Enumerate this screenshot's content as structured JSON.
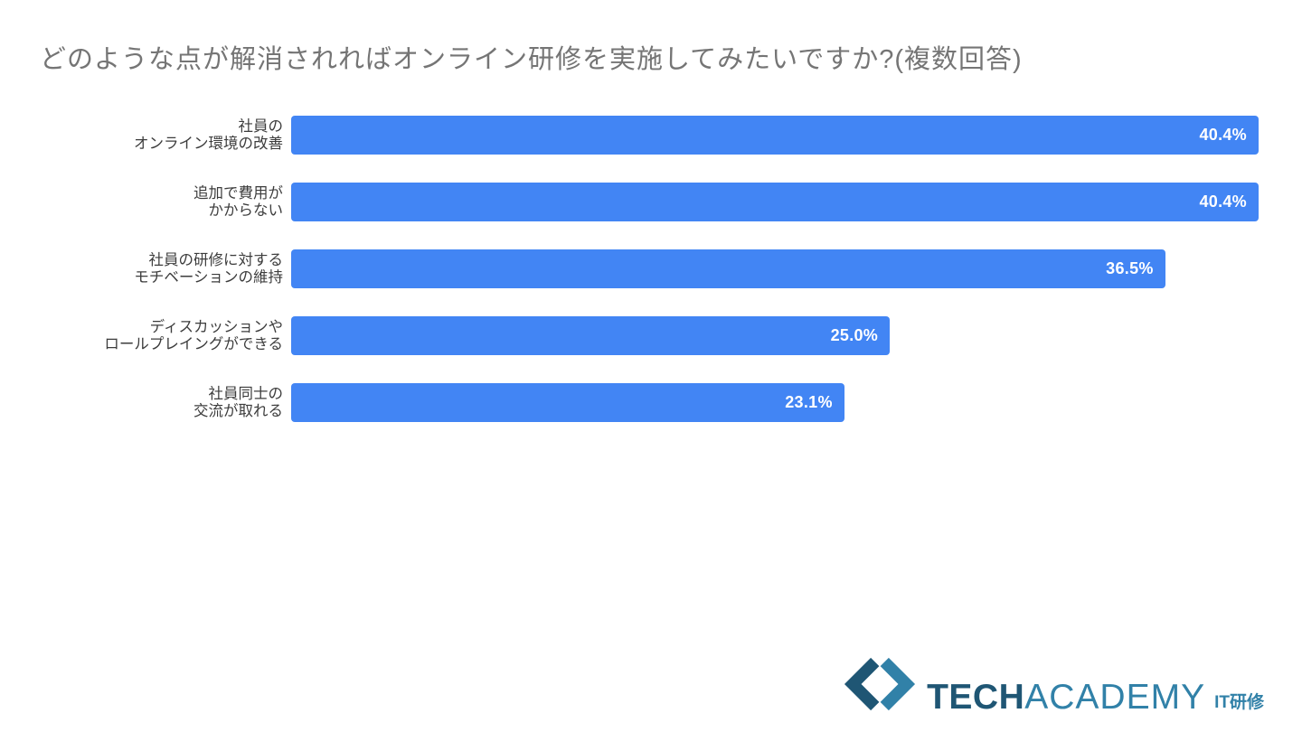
{
  "title": "どのような点が解消されればオンライン研修を実施してみたいですか?(複数回答)",
  "chart_data": {
    "type": "bar",
    "orientation": "horizontal",
    "title": "どのような点が解消されればオンライン研修を実施してみたいですか?(複数回答)",
    "categories": [
      "社員の\nオンライン環境の改善",
      "追加で費用が\nかからない",
      "社員の研修に対する\nモチベーションの維持",
      "ディスカッションや\nロールプレイングができる",
      "社員同士の\n交流が取れる"
    ],
    "values": [
      40.4,
      40.4,
      36.5,
      25.0,
      23.1
    ],
    "value_labels": [
      "40.4%",
      "40.4%",
      "36.5%",
      "25.0%",
      "23.1%"
    ],
    "xlabel": "",
    "ylabel": "",
    "xlim": [
      0,
      40.4
    ],
    "grid": false,
    "legend": false,
    "value_label_position": "inside-end",
    "bar_label_side": "left"
  },
  "colors": {
    "bar": "#4285F4",
    "title_text": "#757575",
    "label_text": "#3C3C3C",
    "value_text": "#FFFFFF",
    "logo_dark": "#1F5674",
    "logo_light": "#3181A8"
  },
  "logo": {
    "icon": "code-chevrons-icon",
    "text_bold": "TECH",
    "text_regular": "ACADEMY",
    "text_suffix": "IT研修"
  }
}
